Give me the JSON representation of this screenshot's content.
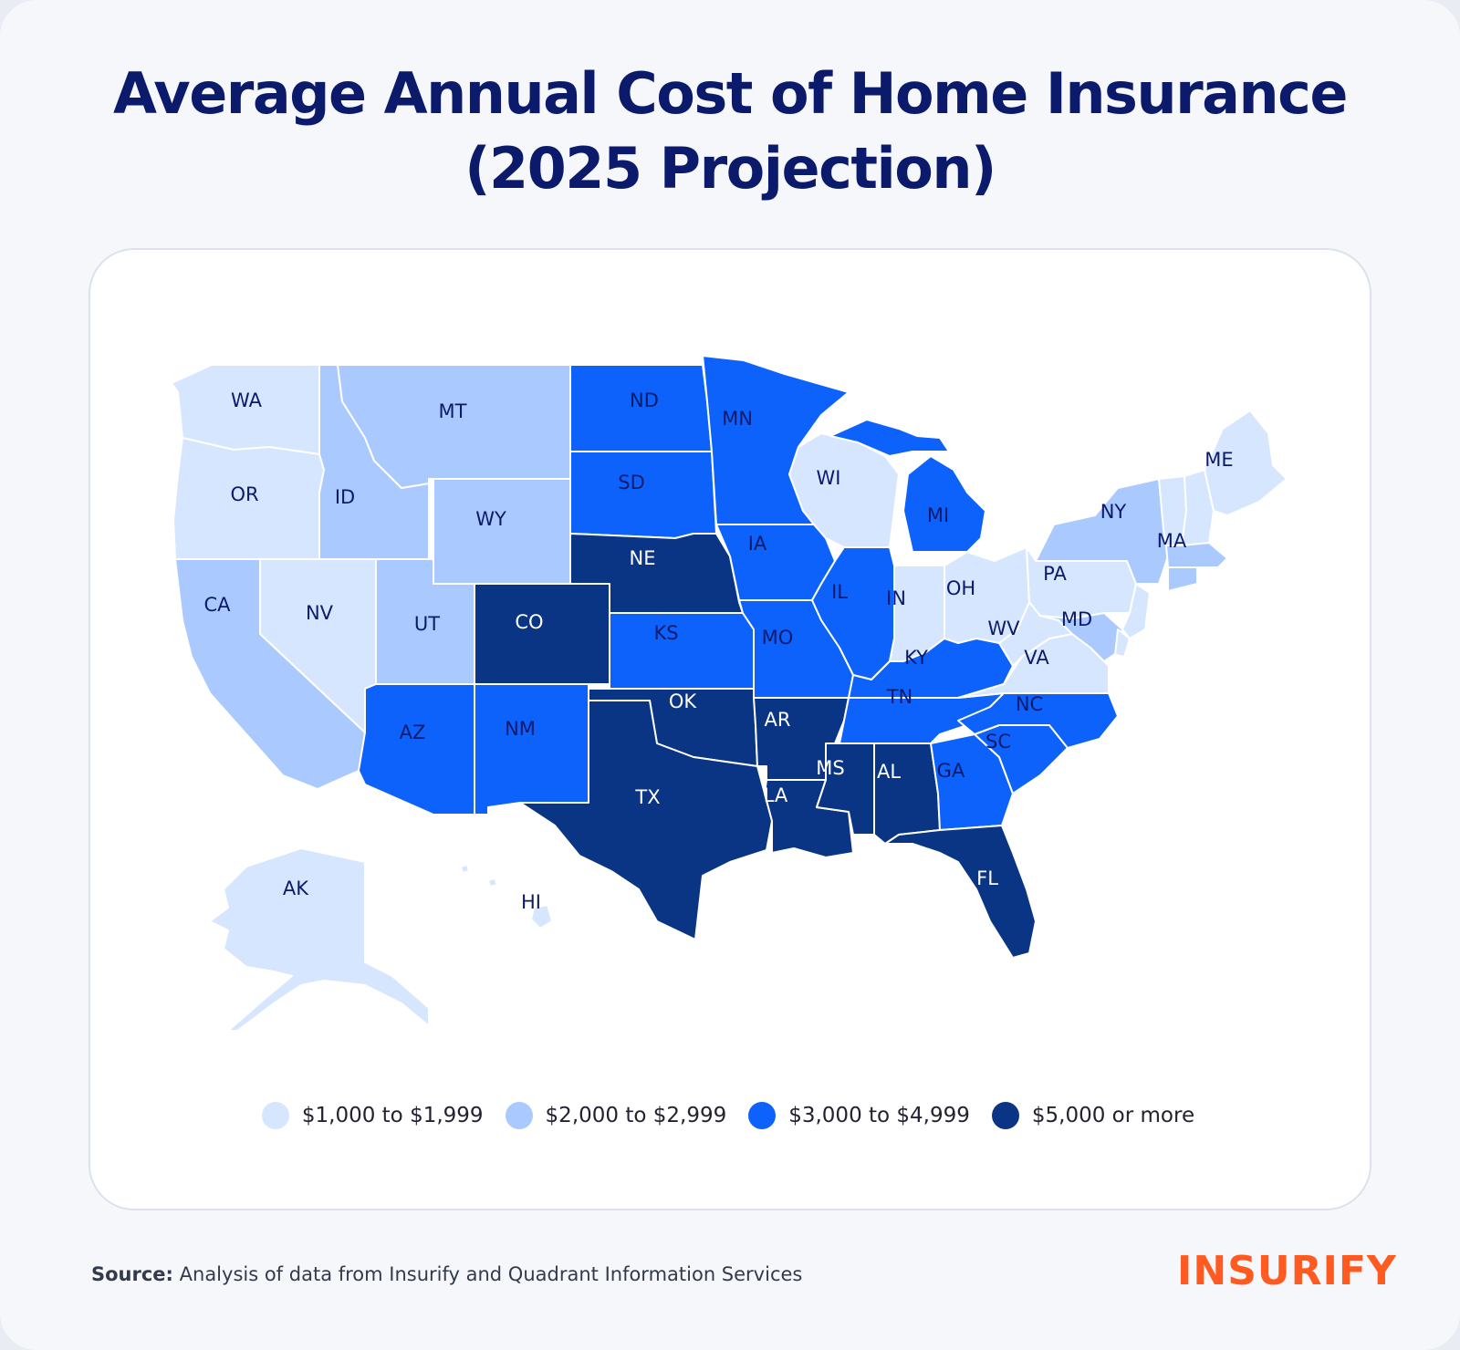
{
  "title_line1": "Average Annual Cost of Home Insurance",
  "title_line2": "(2025 Projection)",
  "colors": {
    "tier1": "#d6e6ff",
    "tier2": "#a9c9ff",
    "tier3": "#0d62fb",
    "tier4": "#0a3585",
    "label_dark": "#0c1a6b",
    "label_light": "#ffffff",
    "accent_logo": "#ff5a1f"
  },
  "legend": [
    {
      "tier": 1,
      "label": "$1,000 to $1,999"
    },
    {
      "tier": 2,
      "label": "$2,000 to $2,999"
    },
    {
      "tier": 3,
      "label": "$3,000 to $4,999"
    },
    {
      "tier": 4,
      "label": "$5,000 or more"
    }
  ],
  "states": {
    "WA": 1,
    "OR": 1,
    "NV": 1,
    "AK": 1,
    "WI": 1,
    "IN": 1,
    "OH": 1,
    "PA": 1,
    "WV": 1,
    "VA": 1,
    "ME": 1,
    "MT": 2,
    "ID": 2,
    "WY": 2,
    "UT": 2,
    "CA": 2,
    "NY": 2,
    "MA": 2,
    "MD": 2,
    "ND": 3,
    "SD": 3,
    "MN": 3,
    "IA": 3,
    "KS": 3,
    "MO": 3,
    "IL": 3,
    "MI": 3,
    "KY": 3,
    "TN": 3,
    "NC": 3,
    "SC": 3,
    "GA": 3,
    "AZ": 3,
    "NM": 3,
    "NE": 4,
    "CO": 4,
    "OK": 4,
    "TX": 4,
    "AR": 4,
    "LA": 4,
    "MS": 4,
    "AL": 4,
    "FL": 4
  },
  "source_label": "Source:",
  "source_text": "Analysis of data from Insurify and Quadrant Information Services",
  "brand": "INSURIFY"
}
